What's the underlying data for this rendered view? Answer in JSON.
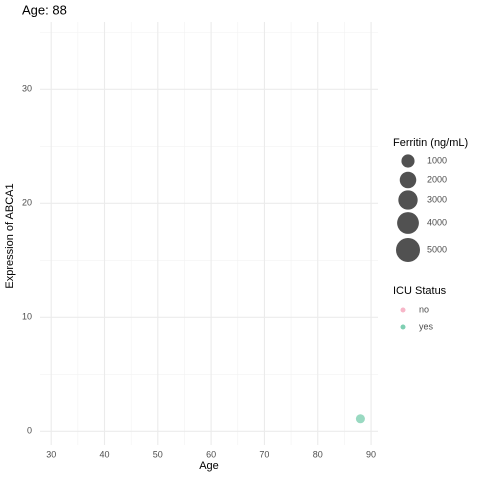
{
  "chart_data": {
    "type": "scatter",
    "title": "Age: 88",
    "x_label": "Age",
    "y_label": "Expression of ABCA1",
    "xlim": [
      27.9,
      91.3
    ],
    "xticks": [
      30,
      40,
      50,
      60,
      70,
      80,
      90
    ],
    "xticks_minor": [
      35,
      45,
      55,
      65,
      75,
      85
    ],
    "ylim": [
      -1.2,
      35.9
    ],
    "yticks": [
      0,
      10,
      20,
      30
    ],
    "yticks_minor": [
      5,
      15,
      25,
      35
    ],
    "grid": true,
    "size_legend": {
      "title": "Ferritin (ng/mL)",
      "values": [
        1000,
        2000,
        3000,
        4000,
        5000
      ]
    },
    "color_legend_title": "ICU Status",
    "series": [
      {
        "name": "no",
        "color": "#f7b6c8",
        "x": [],
        "values": [],
        "sizes": []
      },
      {
        "name": "yes",
        "color": "#7fcfb2",
        "x": [
          88
        ],
        "values": [
          1.1
        ],
        "sizes": [
          100
        ]
      }
    ]
  }
}
